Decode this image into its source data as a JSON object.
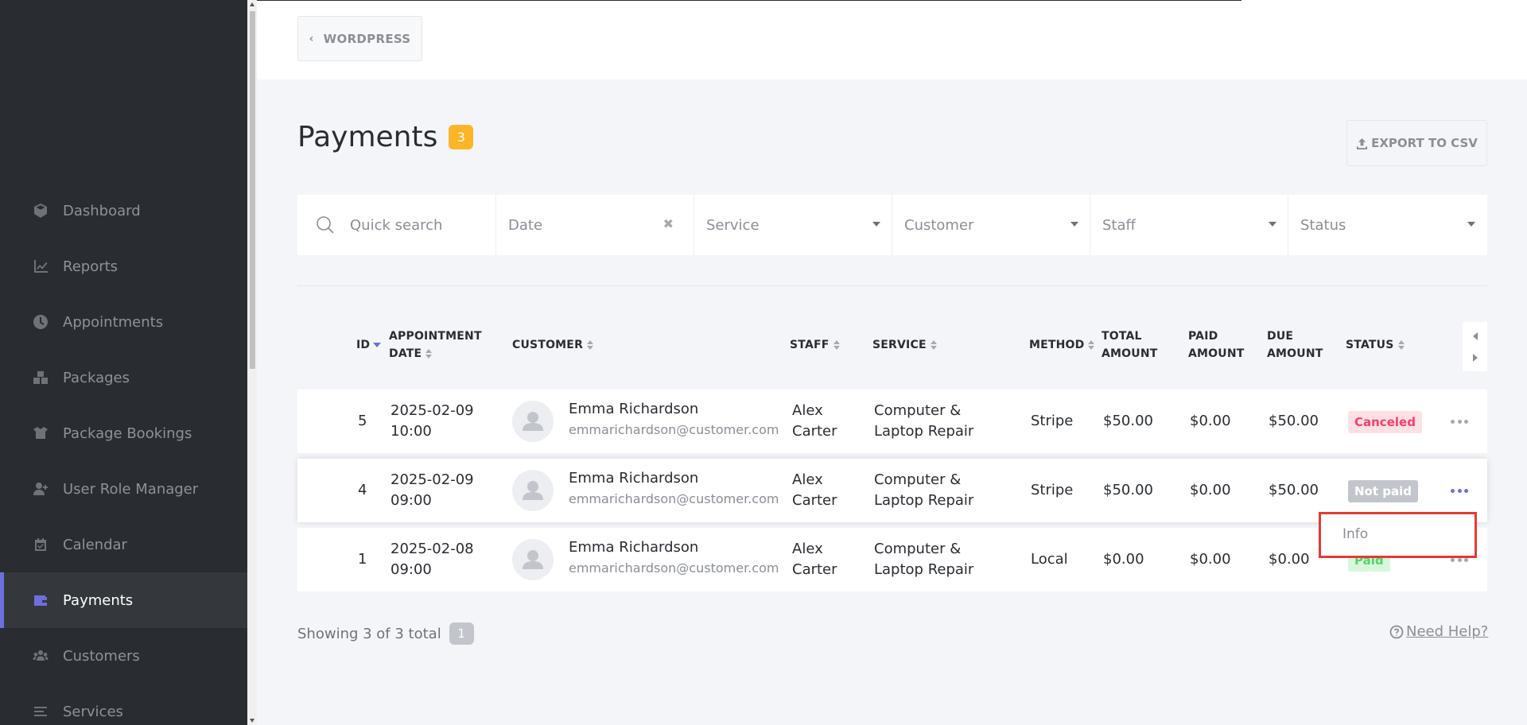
{
  "topbar": {
    "wordpress_label": "WORDPRESS"
  },
  "sidebar": {
    "items": [
      {
        "label": "Dashboard",
        "icon": "dashboard-icon"
      },
      {
        "label": "Reports",
        "icon": "chart-icon"
      },
      {
        "label": "Appointments",
        "icon": "clock-icon"
      },
      {
        "label": "Packages",
        "icon": "boxes-icon"
      },
      {
        "label": "Package Bookings",
        "icon": "box-open-icon"
      },
      {
        "label": "User Role Manager",
        "icon": "user-plus-icon"
      },
      {
        "label": "Calendar",
        "icon": "calendar-icon"
      },
      {
        "label": "Payments",
        "icon": "wallet-icon",
        "active": true
      },
      {
        "label": "Customers",
        "icon": "users-icon"
      },
      {
        "label": "Services",
        "icon": "list-icon"
      }
    ]
  },
  "header": {
    "title": "Payments",
    "count": "3",
    "export_label": "EXPORT TO CSV"
  },
  "filters": {
    "search_placeholder": "Quick search",
    "date": "Date",
    "service": "Service",
    "customer": "Customer",
    "staff": "Staff",
    "status": "Status"
  },
  "table": {
    "headers": {
      "id": "ID",
      "date_1": "APPOINTMENT",
      "date_2": "DATE",
      "customer": "CUSTOMER",
      "staff": "STAFF",
      "service": "SERVICE",
      "method": "METHOD",
      "total_1": "TOTAL",
      "total_2": "AMOUNT",
      "paid_1": "PAID",
      "paid_2": "AMOUNT",
      "due_1": "DUE",
      "due_2": "AMOUNT",
      "status": "STATUS"
    },
    "rows": [
      {
        "id": "5",
        "date": "2025-02-09",
        "time": "10:00",
        "customer_name": "Emma Richardson",
        "customer_email": "emmarichardson@customer.com",
        "staff_1": "Alex",
        "staff_2": "Carter",
        "service_1": "Computer &",
        "service_2": "Laptop Repair",
        "method": "Stripe",
        "total": "$50.00",
        "paid": "$0.00",
        "due": "$50.00",
        "status": "Canceled"
      },
      {
        "id": "4",
        "date": "2025-02-09",
        "time": "09:00",
        "customer_name": "Emma Richardson",
        "customer_email": "emmarichardson@customer.com",
        "staff_1": "Alex",
        "staff_2": "Carter",
        "service_1": "Computer &",
        "service_2": "Laptop Repair",
        "method": "Stripe",
        "total": "$50.00",
        "paid": "$0.00",
        "due": "$50.00",
        "status": "Not paid"
      },
      {
        "id": "1",
        "date": "2025-02-08",
        "time": "09:00",
        "customer_name": "Emma Richardson",
        "customer_email": "emmarichardson@customer.com",
        "staff_1": "Alex",
        "staff_2": "Carter",
        "service_1": "Computer &",
        "service_2": "Laptop Repair",
        "method": "Local",
        "total": "$0.00",
        "paid": "$0.00",
        "due": "$0.00",
        "status": "Paid"
      }
    ]
  },
  "dropdown": {
    "item": "Info"
  },
  "footer": {
    "showing": "Showing 3 of 3 total",
    "page": "1",
    "help": "Need Help?"
  },
  "colors": {
    "accent": "#6c70dc",
    "sidebar": "#292d32",
    "badge": "#fdb528",
    "highlight": "#e53935"
  }
}
